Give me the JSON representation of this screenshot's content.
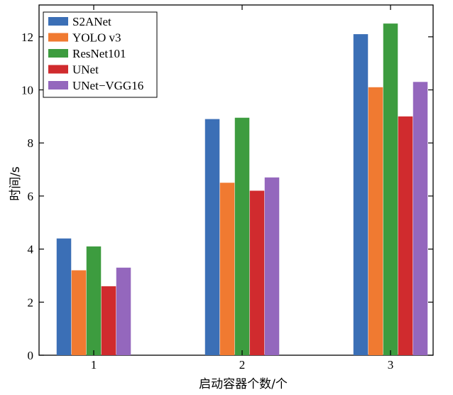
{
  "chart_data": {
    "type": "bar",
    "title": "",
    "xlabel": "启动容器个数/个",
    "ylabel": "时间/s",
    "categories": [
      "1",
      "2",
      "3"
    ],
    "ylim": [
      0,
      13.2
    ],
    "yticks": [
      0,
      2,
      4,
      6,
      8,
      10,
      12
    ],
    "grid": false,
    "legend_position": "top-left",
    "series": [
      {
        "name": "S2ANet",
        "color": "#3b6fb6",
        "values": [
          4.4,
          8.9,
          12.1
        ]
      },
      {
        "name": "YOLO v3",
        "color": "#f07a31",
        "values": [
          3.2,
          6.5,
          10.1
        ]
      },
      {
        "name": "ResNet101",
        "color": "#3d9c3f",
        "values": [
          4.1,
          8.95,
          12.5
        ]
      },
      {
        "name": "UNet",
        "color": "#d02b2e",
        "values": [
          2.6,
          6.2,
          9.0
        ]
      },
      {
        "name": "UNet−VGG16",
        "color": "#9467bd",
        "values": [
          3.3,
          6.7,
          10.3
        ]
      }
    ]
  }
}
